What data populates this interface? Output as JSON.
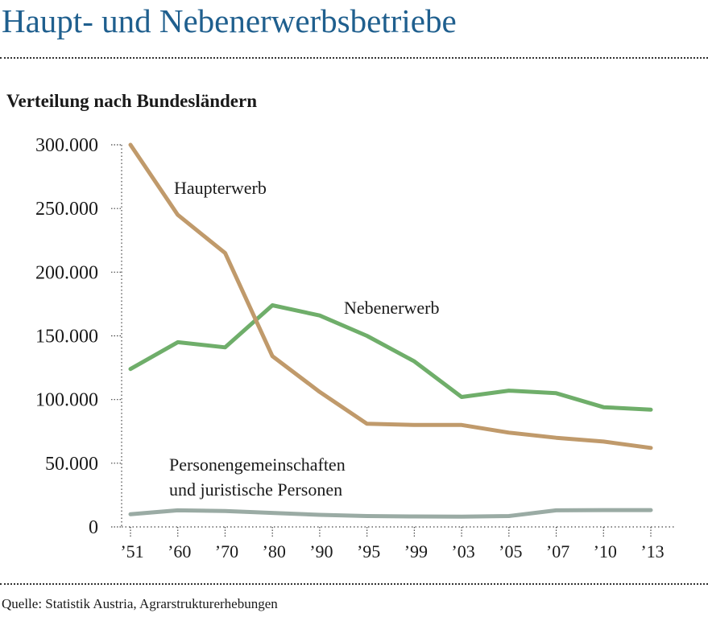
{
  "header": {
    "title": "Haupt- und Nebenerwerbsbetriebe",
    "subtitle": "Verteilung nach Bundesländern"
  },
  "footer": {
    "source": "Quelle: Statistik Austria, Agrarstrukturerhebungen"
  },
  "chart_data": {
    "type": "line",
    "categories": [
      "’51",
      "’60",
      "’70",
      "’80",
      "’90",
      "’95",
      "’99",
      "’03",
      "’05",
      "’07",
      "’10",
      "’13"
    ],
    "ylim": [
      0,
      300000
    ],
    "yticks": [
      {
        "value": 0,
        "label": "0"
      },
      {
        "value": 50000,
        "label": "50.000"
      },
      {
        "value": 100000,
        "label": "100.000"
      },
      {
        "value": 150000,
        "label": "150.000"
      },
      {
        "value": 200000,
        "label": "200.000"
      },
      {
        "value": 250000,
        "label": "250.000"
      },
      {
        "value": 300000,
        "label": "300.000"
      }
    ],
    "grid": false,
    "series": [
      {
        "name": "Haupterwerb",
        "color": "#c09a6b",
        "values": [
          300000,
          245000,
          215000,
          134000,
          106000,
          81000,
          80000,
          80000,
          74000,
          70000,
          67000,
          62000
        ]
      },
      {
        "name": "Nebenerwerb",
        "color": "#6fae6a",
        "values": [
          124000,
          145000,
          141000,
          174000,
          166000,
          150000,
          130000,
          102000,
          107000,
          105000,
          94000,
          92000
        ]
      },
      {
        "name": [
          "Personengemeinschaften",
          "und juristische Personen"
        ],
        "color": "#9aaba4",
        "values": [
          10000,
          13000,
          12500,
          11000,
          9500,
          8500,
          8200,
          8000,
          8500,
          13000,
          13200,
          13200
        ]
      }
    ]
  }
}
